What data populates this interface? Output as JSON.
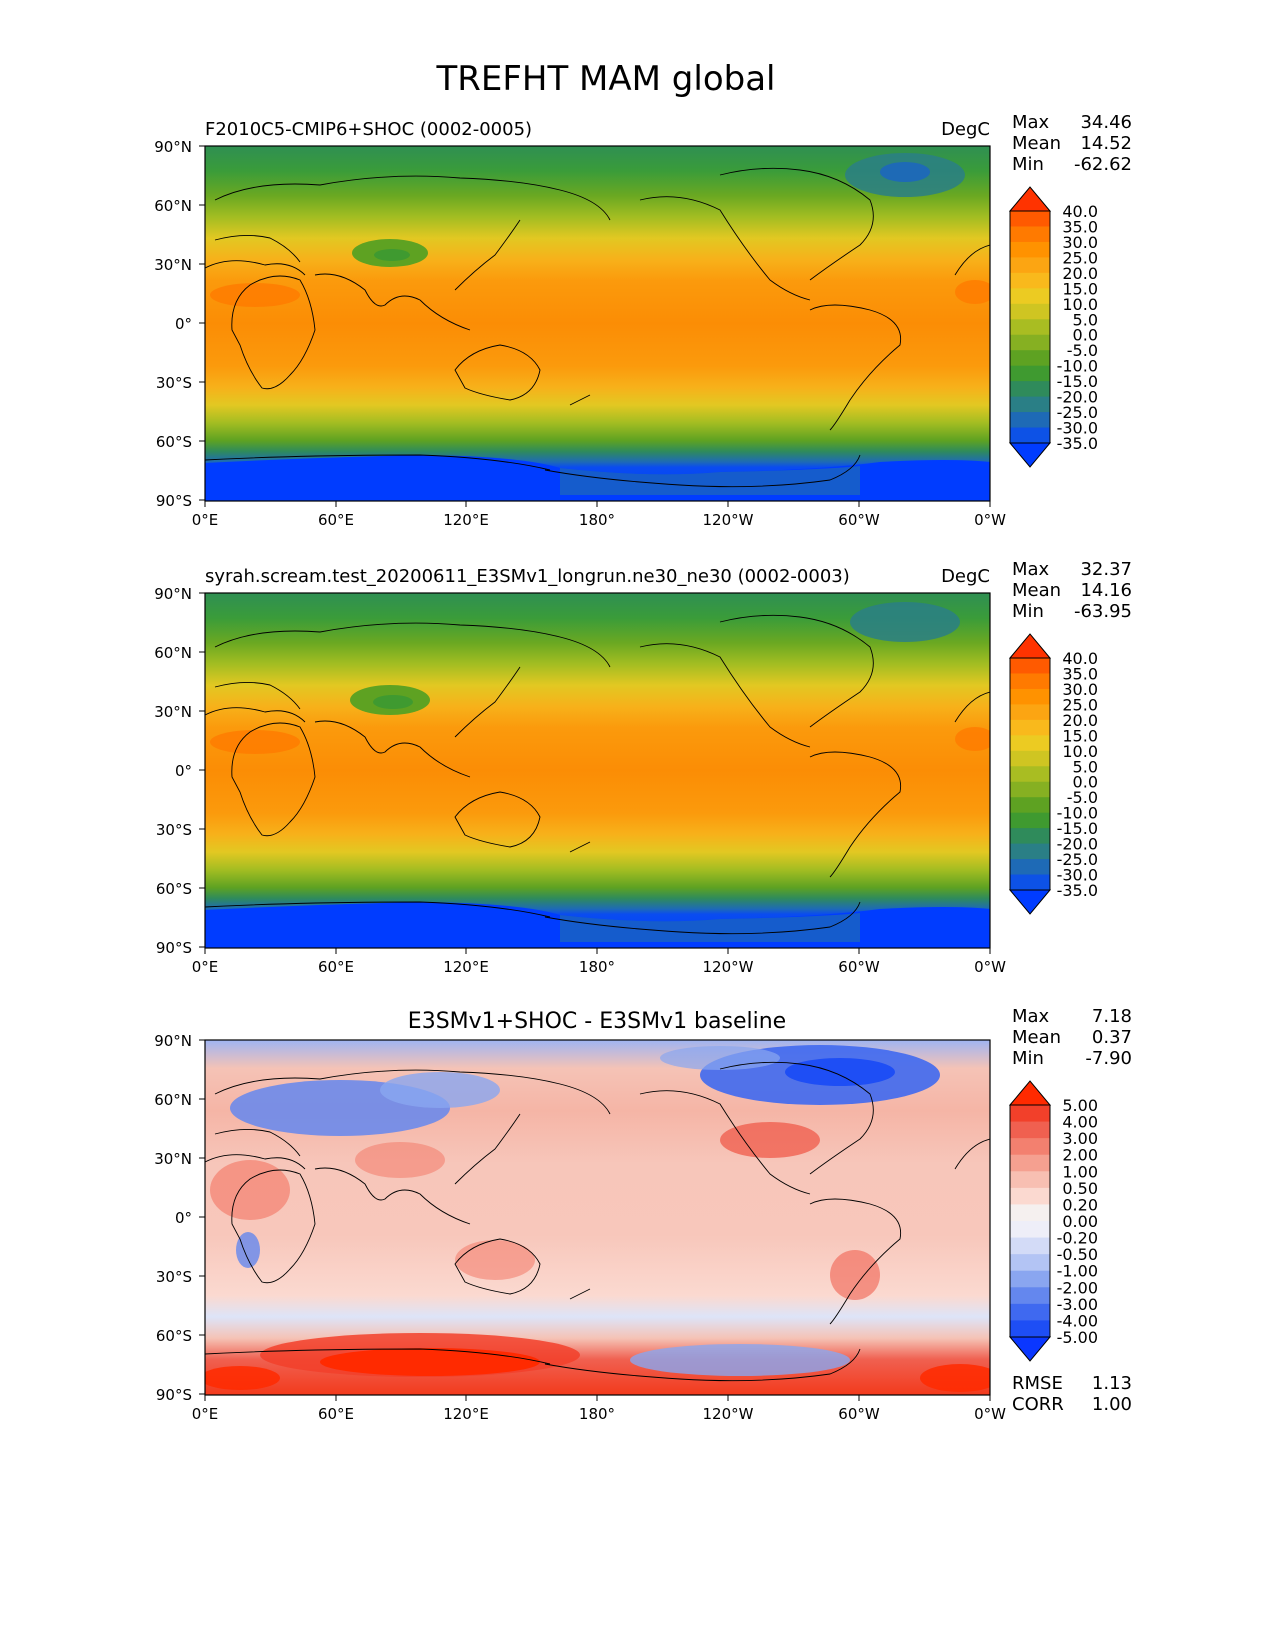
{
  "figure_title": "TREFHT MAM global",
  "lon_ticks": [
    "0°E",
    "60°E",
    "120°E",
    "180°",
    "120°W",
    "60°W",
    "0°W"
  ],
  "lat_ticks": [
    "90°N",
    "60°N",
    "30°N",
    "0°",
    "30°S",
    "60°S",
    "90°S"
  ],
  "chart_data": [
    {
      "type": "heatmap",
      "title": "F2010C5-CMIP6+SHOC (0002-0005)",
      "units": "DegC",
      "stats": {
        "max": "34.46",
        "mean": "14.52",
        "min": "-62.62"
      },
      "stat_labels": {
        "max": "Max",
        "mean": "Mean",
        "min": "Min"
      },
      "colorbar_levels": [
        "40.0",
        "35.0",
        "30.0",
        "25.0",
        "20.0",
        "15.0",
        "10.0",
        "5.0",
        "0.0",
        "-5.0",
        "-10.0",
        "-15.0",
        "-20.0",
        "-25.0",
        "-30.0",
        "-35.0"
      ],
      "colorbar_colors": [
        "#ff3300",
        "#ff5a00",
        "#ff7a00",
        "#ff9200",
        "#fca512",
        "#f9b91c",
        "#eccb22",
        "#cfc522",
        "#a9bd22",
        "#86b022",
        "#5ea222",
        "#3f9a30",
        "#2f8b5b",
        "#2a7f86",
        "#1e6ab6",
        "#0d52e6",
        "#003cff"
      ],
      "xlim": [
        0,
        360
      ],
      "ylim": [
        -90,
        90
      ],
      "field": "model_test"
    },
    {
      "type": "heatmap",
      "title": "syrah.scream.test_20200611_E3SMv1_longrun.ne30_ne30 (0002-0003)",
      "units": "DegC",
      "stats": {
        "max": "32.37",
        "mean": "14.16",
        "min": "-63.95"
      },
      "stat_labels": {
        "max": "Max",
        "mean": "Mean",
        "min": "Min"
      },
      "colorbar_levels": [
        "40.0",
        "35.0",
        "30.0",
        "25.0",
        "20.0",
        "15.0",
        "10.0",
        "5.0",
        "0.0",
        "-5.0",
        "-10.0",
        "-15.0",
        "-20.0",
        "-25.0",
        "-30.0",
        "-35.0"
      ],
      "colorbar_colors": [
        "#ff3300",
        "#ff5a00",
        "#ff7a00",
        "#ff9200",
        "#fca512",
        "#f9b91c",
        "#eccb22",
        "#cfc522",
        "#a9bd22",
        "#86b022",
        "#5ea222",
        "#3f9a30",
        "#2f8b5b",
        "#2a7f86",
        "#1e6ab6",
        "#0d52e6",
        "#003cff"
      ],
      "xlim": [
        0,
        360
      ],
      "ylim": [
        -90,
        90
      ],
      "field": "model_ref"
    },
    {
      "type": "heatmap",
      "title": "E3SMv1+SHOC - E3SMv1 baseline",
      "units": "",
      "stats": {
        "max": "7.18",
        "mean": "0.37",
        "min": "-7.90"
      },
      "stat_labels": {
        "max": "Max",
        "mean": "Mean",
        "min": "Min"
      },
      "extra_stats": {
        "rmse": "1.13",
        "corr": "1.00"
      },
      "extra_labels": {
        "rmse": "RMSE",
        "corr": "CORR"
      },
      "colorbar_levels": [
        "5.00",
        "4.00",
        "3.00",
        "2.00",
        "1.00",
        "0.50",
        "0.20",
        "0.00",
        "-0.20",
        "-0.50",
        "-1.00",
        "-2.00",
        "-3.00",
        "-4.00",
        "-5.00"
      ],
      "colorbar_colors": [
        "#ff2a00",
        "#f2402a",
        "#f06050",
        "#f3806f",
        "#f5a090",
        "#f8bfb2",
        "#fbd9d0",
        "#f5f0ef",
        "#eeeef8",
        "#d3dbf7",
        "#b3c4f4",
        "#8aa6f0",
        "#6487ee",
        "#3f69f0",
        "#1e4ef5",
        "#0a37ff"
      ],
      "xlim": [
        0,
        360
      ],
      "ylim": [
        -90,
        90
      ],
      "field": "difference"
    }
  ]
}
